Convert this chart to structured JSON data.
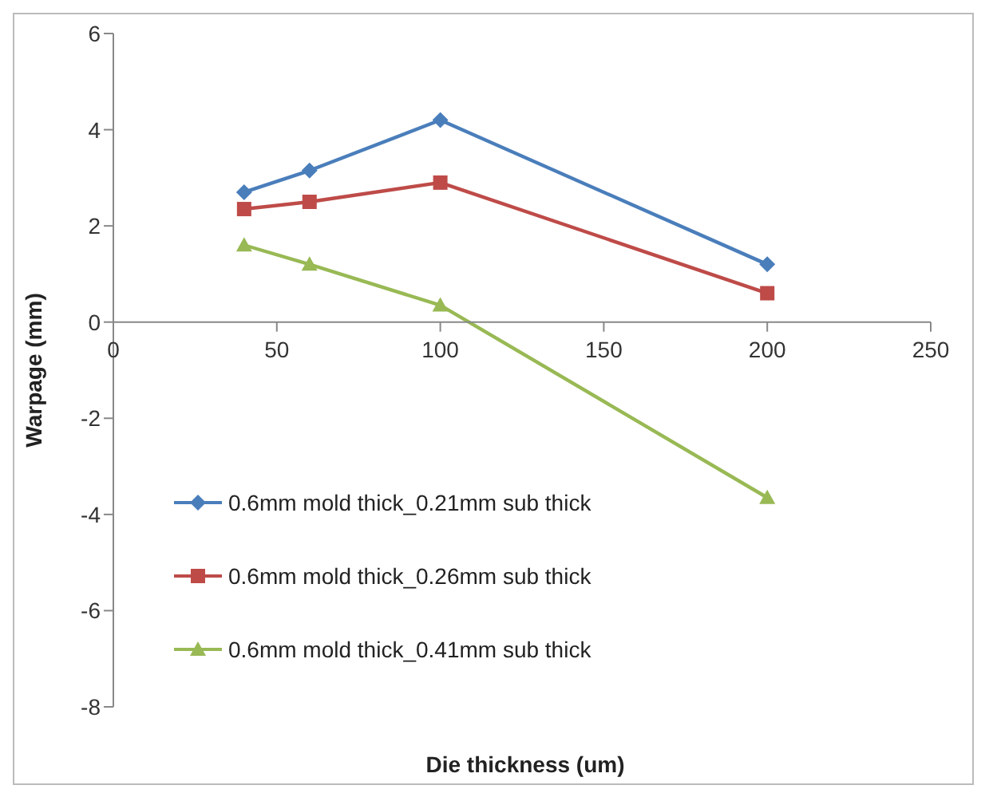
{
  "chart_data": {
    "type": "line",
    "xlabel": "Die thickness (um)",
    "ylabel": "Warpage (mm)",
    "x": [
      40,
      60,
      100,
      200
    ],
    "series": [
      {
        "name": "0.6mm mold thick_0.21mm sub thick",
        "color": "#4a7ebb",
        "marker": "diamond",
        "values": [
          2.7,
          3.15,
          4.2,
          1.2
        ]
      },
      {
        "name": "0.6mm mold thick_0.26mm sub thick",
        "color": "#be4b48",
        "marker": "square",
        "values": [
          2.35,
          2.5,
          2.9,
          0.6
        ]
      },
      {
        "name": "0.6mm mold thick_0.41mm sub thick",
        "color": "#98b954",
        "marker": "triangle",
        "values": [
          1.6,
          1.2,
          0.35,
          -3.65
        ]
      }
    ],
    "xlim": [
      0,
      250
    ],
    "xticks": [
      0,
      50,
      100,
      150,
      200,
      250
    ],
    "ylim": [
      -8,
      6
    ],
    "yticks": [
      -8,
      -6,
      -4,
      -2,
      0,
      2,
      4,
      6
    ],
    "grid": false,
    "legend": "left",
    "line_style": "solid"
  }
}
